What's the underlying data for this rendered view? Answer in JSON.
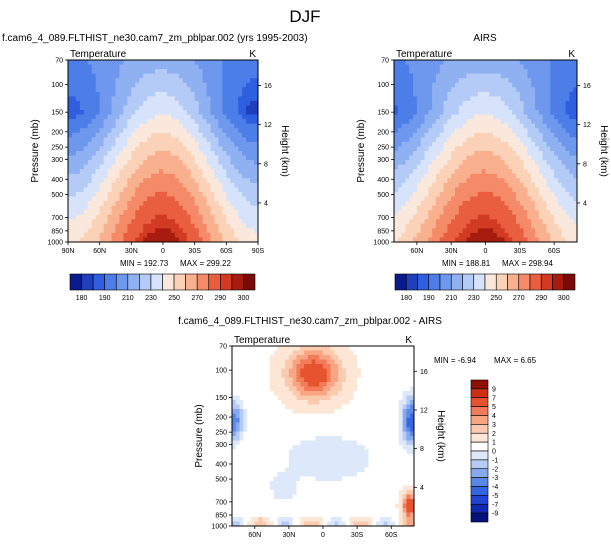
{
  "page_title": "DJF",
  "chart_data": [
    {
      "type": "heatmap",
      "panel": "model",
      "title": "f.cam6_4_089.FLTHIST_ne30.cam7_zm_pblpar.002 (yrs 1995-2003)",
      "left_label": "Temperature",
      "right_label": "K",
      "ylabel": "Pressure (mb)",
      "y2label": "Height (km)",
      "x_ticks": [
        "90N",
        "60N",
        "30N",
        "0",
        "30S",
        "60S",
        "90S"
      ],
      "x_range": [
        90,
        -90
      ],
      "y_ticks": [
        70,
        100,
        150,
        200,
        250,
        300,
        400,
        500,
        700,
        850,
        1000
      ],
      "y_range": [
        70,
        1000
      ],
      "height_ticks": [
        4,
        8,
        12,
        16
      ],
      "min_label": "MIN = 192.73",
      "max_label": "MAX = 299.22",
      "min": 192.73,
      "max": 299.22,
      "colorbar_levels": [
        180,
        185,
        190,
        200,
        210,
        220,
        230,
        240,
        250,
        260,
        270,
        280,
        290,
        295,
        300
      ],
      "colorbar_labels": [
        "180",
        "190",
        "210",
        "230",
        "250",
        "270",
        "290",
        "300"
      ],
      "colors": [
        "#0a1a8c",
        "#1f3fbd",
        "#2f5fe0",
        "#4d7ee8",
        "#6e98ee",
        "#8fb1f2",
        "#b3cbf6",
        "#d6e3fa",
        "#fbe8dc",
        "#fbd2b7",
        "#f9b08f",
        "#f48a68",
        "#e85e3f",
        "#d23a22",
        "#a81c10",
        "#7a0a05"
      ]
    },
    {
      "type": "heatmap",
      "panel": "obs",
      "title": "AIRS",
      "left_label": "Temperature",
      "right_label": "K",
      "ylabel": "Pressure (mb)",
      "y2label": "Height (km)",
      "x_ticks": [
        "60N",
        "30N",
        "0",
        "30S",
        "60S"
      ],
      "x_range": [
        80,
        -80
      ],
      "y_ticks": [
        70,
        100,
        150,
        200,
        250,
        300,
        400,
        500,
        700,
        850,
        1000
      ],
      "y_range": [
        70,
        1000
      ],
      "height_ticks": [
        4,
        8,
        12,
        16
      ],
      "min_label": "MIN = 188.81",
      "max_label": "MAX = 298.94",
      "min": 188.81,
      "max": 298.94,
      "colorbar_levels": [
        180,
        185,
        190,
        200,
        210,
        220,
        230,
        240,
        250,
        260,
        270,
        280,
        290,
        295,
        300
      ],
      "colorbar_labels": [
        "180",
        "190",
        "210",
        "230",
        "250",
        "270",
        "290",
        "300"
      ],
      "colors": [
        "#0a1a8c",
        "#1f3fbd",
        "#2f5fe0",
        "#4d7ee8",
        "#6e98ee",
        "#8fb1f2",
        "#b3cbf6",
        "#d6e3fa",
        "#fbe8dc",
        "#fbd2b7",
        "#f9b08f",
        "#f48a68",
        "#e85e3f",
        "#d23a22",
        "#a81c10",
        "#7a0a05"
      ]
    },
    {
      "type": "heatmap",
      "panel": "diff",
      "title": "f.cam6_4_089.FLTHIST_ne30.cam7_zm_pblpar.002 - AIRS",
      "left_label": "Temperature",
      "right_label": "K",
      "ylabel": "Pressure (mb)",
      "y2label": "Height (km)",
      "x_ticks": [
        "60N",
        "30N",
        "0",
        "30S",
        "60S"
      ],
      "x_range": [
        80,
        -80
      ],
      "y_ticks": [
        70,
        100,
        150,
        200,
        250,
        300,
        400,
        500,
        700,
        850,
        1000
      ],
      "y_range": [
        70,
        1000
      ],
      "height_ticks": [
        4,
        8,
        12,
        16
      ],
      "min_label": "MIN = -6.94",
      "max_label": "MAX =  6.65",
      "min": -6.94,
      "max": 6.65,
      "colorbar_levels": [
        -9,
        -7,
        -5,
        -4,
        -3,
        -2,
        -1,
        0,
        1,
        2,
        3,
        4,
        5,
        7,
        9
      ],
      "colorbar_labels": [
        "9",
        "7",
        "5",
        "4",
        "3",
        "2",
        "1",
        "0",
        "-1",
        "-2",
        "-3",
        "-4",
        "-5",
        "-7",
        "-9"
      ],
      "colors": [
        "#05127a",
        "#1228b0",
        "#2244d6",
        "#3566e0",
        "#5a88e8",
        "#86aaf0",
        "#b4cbf6",
        "#dde8fb",
        "#ffffff",
        "#fde6d6",
        "#fbc9ad",
        "#f8a583",
        "#f27c59",
        "#e6532f",
        "#cc2e16",
        "#8e0e04"
      ]
    }
  ]
}
